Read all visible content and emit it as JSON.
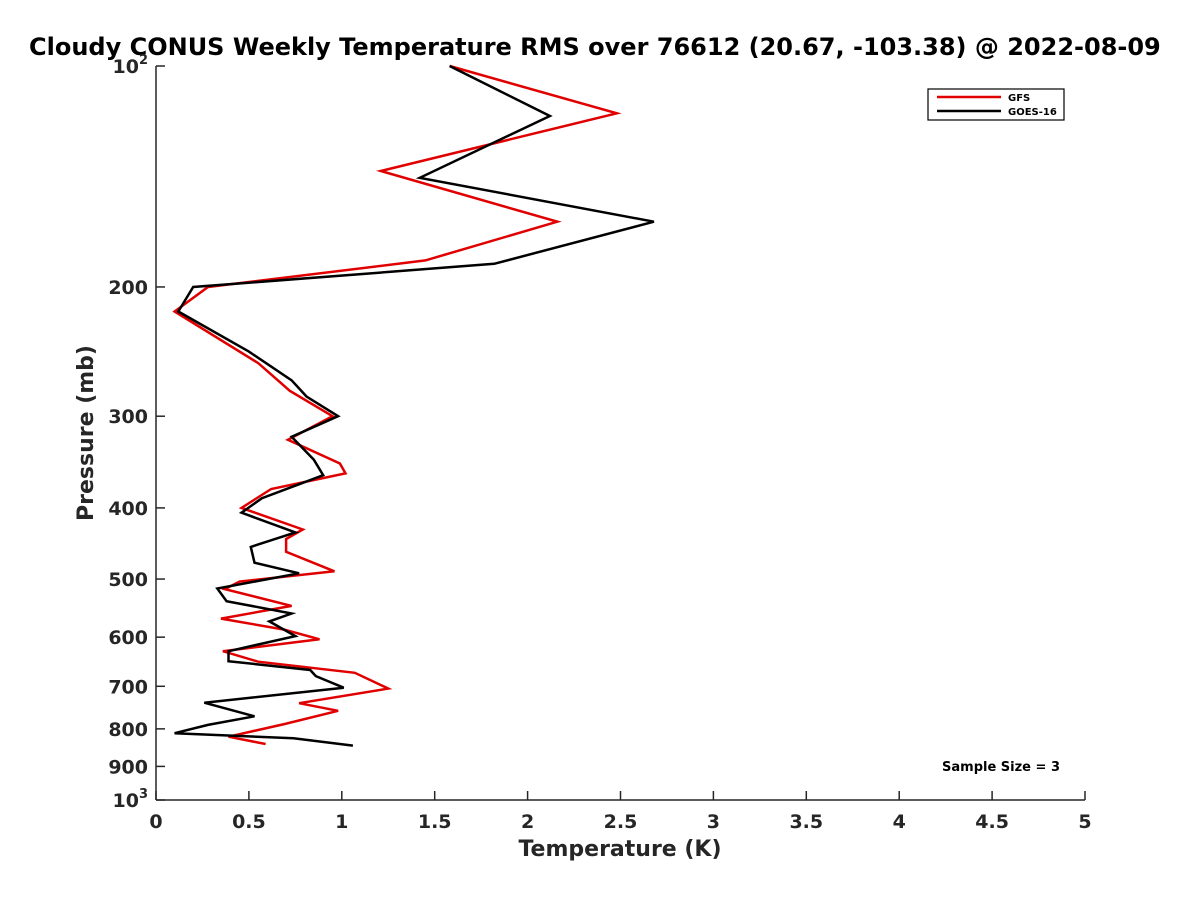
{
  "chart_data": {
    "type": "line",
    "title": "Cloudy CONUS Weekly Temperature RMS over 76612 (20.67, -103.38) @ 2022-08-09",
    "xlabel": "Temperature (K)",
    "ylabel": "Pressure (mb)",
    "xlim": [
      0,
      5
    ],
    "ylim": [
      100,
      1000
    ],
    "y_scale": "log",
    "y_reversed": true,
    "grid": false,
    "legend_position": "top-right",
    "x_ticks": [
      {
        "value": 0,
        "label": "0"
      },
      {
        "value": 0.5,
        "label": "0.5"
      },
      {
        "value": 1,
        "label": "1"
      },
      {
        "value": 1.5,
        "label": "1.5"
      },
      {
        "value": 2,
        "label": "2"
      },
      {
        "value": 2.5,
        "label": "2.5"
      },
      {
        "value": 3,
        "label": "3"
      },
      {
        "value": 3.5,
        "label": "3.5"
      },
      {
        "value": 4,
        "label": "4"
      },
      {
        "value": 4.5,
        "label": "4.5"
      },
      {
        "value": 5,
        "label": "5"
      }
    ],
    "y_ticks": [
      {
        "value": 100,
        "label": "10",
        "sup": "2"
      },
      {
        "value": 200,
        "label": "200",
        "sup": ""
      },
      {
        "value": 300,
        "label": "300",
        "sup": ""
      },
      {
        "value": 400,
        "label": "400",
        "sup": ""
      },
      {
        "value": 500,
        "label": "500",
        "sup": ""
      },
      {
        "value": 600,
        "label": "600",
        "sup": ""
      },
      {
        "value": 700,
        "label": "700",
        "sup": ""
      },
      {
        "value": 800,
        "label": "800",
        "sup": ""
      },
      {
        "value": 900,
        "label": "900",
        "sup": ""
      },
      {
        "value": 1000,
        "label": "10",
        "sup": "3"
      }
    ],
    "series": [
      {
        "name": "GFS",
        "color": "#e00000",
        "points": [
          [
            1.58,
            100
          ],
          [
            2.48,
            116
          ],
          [
            1.21,
            139
          ],
          [
            2.16,
            163
          ],
          [
            1.45,
            184
          ],
          [
            0.28,
            200
          ],
          [
            0.1,
            216
          ],
          [
            0.55,
            254
          ],
          [
            0.72,
            277
          ],
          [
            0.95,
            300
          ],
          [
            0.71,
            323
          ],
          [
            0.99,
            348
          ],
          [
            1.02,
            359
          ],
          [
            0.62,
            377
          ],
          [
            0.46,
            400
          ],
          [
            0.79,
            428
          ],
          [
            0.7,
            441
          ],
          [
            0.7,
            459
          ],
          [
            0.96,
            488
          ],
          [
            0.45,
            504
          ],
          [
            0.37,
            516
          ],
          [
            0.73,
            544
          ],
          [
            0.35,
            566
          ],
          [
            0.69,
            586
          ],
          [
            0.88,
            604
          ],
          [
            0.36,
            627
          ],
          [
            0.55,
            648
          ],
          [
            1.07,
            671
          ],
          [
            1.25,
            705
          ],
          [
            0.77,
            738
          ],
          [
            0.98,
            756
          ],
          [
            0.69,
            788
          ],
          [
            0.39,
            820
          ],
          [
            0.59,
            839
          ]
        ]
      },
      {
        "name": "GOES-16",
        "color": "#000000",
        "points": [
          [
            1.58,
            100
          ],
          [
            2.12,
            117
          ],
          [
            1.42,
            142
          ],
          [
            2.68,
            163
          ],
          [
            1.82,
            186
          ],
          [
            0.2,
            200
          ],
          [
            0.12,
            216
          ],
          [
            0.5,
            245
          ],
          [
            0.73,
            268
          ],
          [
            0.81,
            282
          ],
          [
            0.98,
            300
          ],
          [
            0.73,
            320
          ],
          [
            0.85,
            344
          ],
          [
            0.9,
            361
          ],
          [
            0.57,
            388
          ],
          [
            0.46,
            406
          ],
          [
            0.75,
            432
          ],
          [
            0.51,
            452
          ],
          [
            0.53,
            475
          ],
          [
            0.77,
            491
          ],
          [
            0.33,
            515
          ],
          [
            0.38,
            536
          ],
          [
            0.73,
            557
          ],
          [
            0.61,
            571
          ],
          [
            0.75,
            598
          ],
          [
            0.39,
            627
          ],
          [
            0.39,
            647
          ],
          [
            0.83,
            665
          ],
          [
            0.86,
            678
          ],
          [
            1.01,
            703
          ],
          [
            0.26,
            737
          ],
          [
            0.53,
            769
          ],
          [
            0.28,
            790
          ],
          [
            0.1,
            811
          ],
          [
            0.74,
            824
          ],
          [
            1.06,
            843
          ]
        ]
      }
    ],
    "annotation": "Sample Size = 3"
  }
}
